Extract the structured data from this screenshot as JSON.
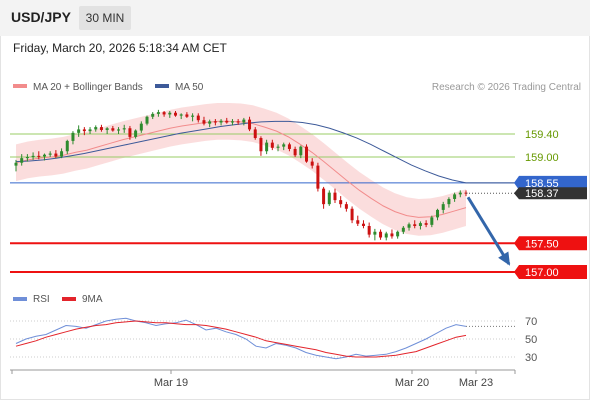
{
  "header": {
    "pair": "USD/JPY",
    "timeframe": "30 MIN"
  },
  "datetime": "Friday, March 20, 2026 5:18:34 AM CET",
  "legend": {
    "ma20": "MA 20 + Bollinger Bands",
    "ma50": "MA 50",
    "credit": "Research © 2026 Trading Central"
  },
  "rsi_legend": {
    "rsi": "RSI",
    "ma": "9MA"
  },
  "colors": {
    "bb_fill": "#fbd9d9",
    "ma20": "#f28c8c",
    "ma50": "#3d5a99",
    "up": "#2e8b2e",
    "down": "#cc1111",
    "resistance": "#99cc66",
    "support": "#ee1111",
    "current": "#3366cc",
    "arrow": "#3366aa",
    "rsi": "#6f8fd8",
    "rsi_ma": "#e3242b"
  },
  "chart_data": {
    "type": "candlestick",
    "instrument": "USD/JPY",
    "timeframe": "30 MIN",
    "ylim": [
      156.9,
      159.9
    ],
    "x_ticks": [
      "Mar 19",
      "Mar 20",
      "Mar 23"
    ],
    "levels": [
      {
        "label": "159.40",
        "value": 159.4,
        "kind": "resistance"
      },
      {
        "label": "159.00",
        "value": 159.0,
        "kind": "resistance"
      },
      {
        "label": "158.55",
        "value": 158.55,
        "kind": "current-pivot"
      },
      {
        "label": "157.50",
        "value": 157.5,
        "kind": "support"
      },
      {
        "label": "157.00",
        "value": 157.0,
        "kind": "support"
      }
    ],
    "last_price": {
      "label": "158.37",
      "value": 158.37
    },
    "forecast_target": 157.0,
    "candles": [
      [
        158.85,
        158.95,
        158.75,
        158.9
      ],
      [
        158.9,
        159.05,
        158.85,
        158.98
      ],
      [
        158.98,
        159.05,
        158.92,
        159.0
      ],
      [
        159.0,
        159.08,
        158.95,
        159.02
      ],
      [
        159.02,
        159.1,
        158.96,
        159.01
      ],
      [
        159.01,
        159.06,
        158.94,
        159.04
      ],
      [
        159.04,
        159.1,
        159.0,
        159.06
      ],
      [
        159.06,
        159.12,
        158.98,
        159.01
      ],
      [
        159.01,
        159.15,
        158.98,
        159.1
      ],
      [
        159.1,
        159.3,
        159.05,
        159.28
      ],
      [
        159.28,
        159.45,
        159.22,
        159.42
      ],
      [
        159.42,
        159.55,
        159.35,
        159.48
      ],
      [
        159.48,
        159.52,
        159.38,
        159.45
      ],
      [
        159.45,
        159.52,
        159.4,
        159.48
      ],
      [
        159.48,
        159.55,
        159.44,
        159.52
      ],
      [
        159.52,
        159.56,
        159.44,
        159.47
      ],
      [
        159.47,
        159.52,
        159.4,
        159.5
      ],
      [
        159.5,
        159.54,
        159.44,
        159.46
      ],
      [
        159.46,
        159.52,
        159.4,
        159.48
      ],
      [
        159.48,
        159.56,
        159.42,
        159.5
      ],
      [
        159.5,
        159.54,
        159.3,
        159.35
      ],
      [
        159.35,
        159.48,
        159.32,
        159.46
      ],
      [
        159.46,
        159.62,
        159.42,
        159.58
      ],
      [
        159.58,
        159.72,
        159.55,
        159.7
      ],
      [
        159.7,
        159.78,
        159.66,
        159.75
      ],
      [
        159.75,
        159.82,
        159.7,
        159.78
      ],
      [
        159.78,
        159.8,
        159.7,
        159.74
      ],
      [
        159.74,
        159.8,
        159.68,
        159.77
      ],
      [
        159.77,
        159.8,
        159.7,
        159.72
      ],
      [
        159.72,
        159.76,
        159.66,
        159.74
      ],
      [
        159.74,
        159.78,
        159.68,
        159.7
      ],
      [
        159.7,
        159.76,
        159.62,
        159.72
      ],
      [
        159.72,
        159.76,
        159.6,
        159.64
      ],
      [
        159.64,
        159.7,
        159.55,
        159.58
      ],
      [
        159.58,
        159.65,
        159.52,
        159.62
      ],
      [
        159.62,
        159.66,
        159.55,
        159.6
      ],
      [
        159.6,
        159.66,
        159.55,
        159.63
      ],
      [
        159.63,
        159.68,
        159.58,
        159.6
      ],
      [
        159.6,
        159.66,
        159.55,
        159.62
      ],
      [
        159.62,
        159.66,
        159.56,
        159.6
      ],
      [
        159.6,
        159.68,
        159.55,
        159.65
      ],
      [
        159.65,
        159.7,
        159.45,
        159.48
      ],
      [
        159.48,
        159.52,
        159.3,
        159.33
      ],
      [
        159.33,
        159.36,
        159.02,
        159.1
      ],
      [
        159.1,
        159.3,
        159.05,
        159.25
      ],
      [
        159.25,
        159.3,
        159.12,
        159.16
      ],
      [
        159.16,
        159.22,
        159.1,
        159.18
      ],
      [
        159.18,
        159.25,
        159.12,
        159.22
      ],
      [
        159.22,
        159.25,
        159.1,
        159.14
      ],
      [
        159.14,
        159.18,
        159.0,
        159.03
      ],
      [
        159.03,
        159.2,
        158.98,
        159.18
      ],
      [
        159.18,
        159.22,
        158.9,
        158.92
      ],
      [
        158.92,
        158.98,
        158.8,
        158.85
      ],
      [
        158.85,
        158.9,
        158.4,
        158.45
      ],
      [
        158.45,
        158.48,
        158.1,
        158.18
      ],
      [
        158.18,
        158.42,
        158.15,
        158.38
      ],
      [
        158.38,
        158.45,
        158.2,
        158.25
      ],
      [
        158.25,
        158.32,
        158.12,
        158.18
      ],
      [
        158.18,
        158.22,
        158.05,
        158.1
      ],
      [
        158.1,
        158.14,
        157.85,
        157.9
      ],
      [
        157.9,
        157.98,
        157.8,
        157.84
      ],
      [
        157.84,
        157.9,
        157.76,
        157.8
      ],
      [
        157.8,
        157.86,
        157.6,
        157.65
      ],
      [
        157.65,
        157.75,
        157.55,
        157.7
      ],
      [
        157.7,
        157.74,
        157.56,
        157.6
      ],
      [
        157.6,
        157.7,
        157.55,
        157.67
      ],
      [
        157.67,
        157.74,
        157.58,
        157.62
      ],
      [
        157.62,
        157.72,
        157.58,
        157.7
      ],
      [
        157.7,
        157.8,
        157.66,
        157.77
      ],
      [
        157.77,
        157.86,
        157.72,
        157.83
      ],
      [
        157.83,
        157.9,
        157.76,
        157.8
      ],
      [
        157.8,
        157.88,
        157.74,
        157.85
      ],
      [
        157.85,
        157.9,
        157.78,
        157.82
      ],
      [
        157.82,
        157.98,
        157.78,
        157.95
      ],
      [
        157.95,
        158.1,
        157.9,
        158.08
      ],
      [
        158.08,
        158.22,
        158.02,
        158.18
      ],
      [
        158.18,
        158.3,
        158.12,
        158.27
      ],
      [
        158.27,
        158.38,
        158.22,
        158.35
      ],
      [
        158.35,
        158.42,
        158.3,
        158.38
      ],
      [
        158.38,
        158.42,
        158.32,
        158.37
      ]
    ],
    "ma20": [
      158.9,
      158.95,
      158.98,
      159.0,
      159.03,
      159.08,
      159.12,
      159.18,
      159.24,
      159.3,
      159.35,
      159.4,
      159.45,
      159.5,
      159.54,
      159.57,
      159.6,
      159.62,
      159.62,
      159.61,
      159.58,
      159.52,
      159.45,
      159.35,
      159.22,
      159.08,
      158.92,
      158.75,
      158.58,
      158.42,
      158.28,
      158.15,
      158.05,
      157.98,
      157.95,
      157.96,
      158.0,
      158.06,
      158.12
    ],
    "ma50": [
      158.92,
      158.93,
      158.95,
      158.98,
      159.02,
      159.06,
      159.11,
      159.16,
      159.21,
      159.26,
      159.31,
      159.36,
      159.41,
      159.45,
      159.49,
      159.53,
      159.56,
      159.59,
      159.61,
      159.62,
      159.62,
      159.6,
      159.56,
      159.5,
      159.42,
      159.33,
      159.22,
      159.1,
      158.98,
      158.86,
      158.76,
      158.67,
      158.6,
      158.55
    ],
    "rsi_ticks": [
      70,
      50,
      30
    ],
    "rsi_ylim": [
      20,
      80
    ],
    "rsi": [
      45,
      50,
      53,
      55,
      60,
      65,
      64,
      62,
      66,
      70,
      72,
      73,
      70,
      68,
      65,
      67,
      68,
      71,
      66,
      60,
      62,
      58,
      55,
      50,
      42,
      40,
      45,
      43,
      40,
      35,
      32,
      30,
      28,
      30,
      33,
      31,
      32,
      33,
      36,
      40,
      45,
      50,
      56,
      62,
      66,
      64
    ],
    "rsi_ma": [
      42,
      45,
      48,
      52,
      55,
      58,
      61,
      63,
      65,
      66,
      68,
      69,
      70,
      69,
      68,
      68,
      67,
      66,
      66,
      65,
      63,
      61,
      58,
      55,
      52,
      48,
      46,
      44,
      42,
      40,
      38,
      35,
      33,
      31,
      30,
      30,
      30,
      31,
      32,
      34,
      36,
      40,
      44,
      48,
      52,
      54
    ]
  }
}
